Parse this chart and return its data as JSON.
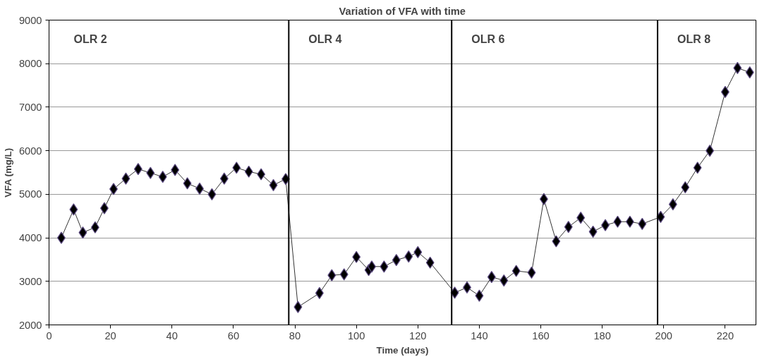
{
  "chart_data": {
    "type": "line",
    "title": "Variation of VFA with time",
    "xlabel": "Time (days)",
    "ylabel": "VFA (mg/L)",
    "x": [
      4,
      8,
      11,
      15,
      18,
      21,
      25,
      29,
      33,
      37,
      41,
      45,
      49,
      53,
      57,
      61,
      65,
      69,
      73,
      77,
      81,
      88,
      92,
      96,
      100,
      104,
      105,
      109,
      113,
      117,
      120,
      124,
      132,
      136,
      140,
      144,
      148,
      152,
      157,
      161,
      165,
      169,
      173,
      177,
      181,
      185,
      189,
      193,
      199,
      203,
      207,
      211,
      215,
      220,
      224,
      228
    ],
    "series": [
      {
        "color": "#000000",
        "values": [
          4000,
          4650,
          4120,
          4240,
          4680,
          5120,
          5360,
          5580,
          5490,
          5400,
          5560,
          5250,
          5130,
          5000,
          5360,
          5610,
          5520,
          5460,
          5210,
          5350,
          2410,
          2730,
          3140,
          3160,
          3560,
          3260,
          3340,
          3340,
          3490,
          3570,
          3670,
          3430,
          2740,
          2860,
          2670,
          3100,
          3020,
          3240,
          3200,
          4890,
          3920,
          4250,
          4460,
          4140,
          4290,
          4370,
          4370,
          4320,
          4480,
          4770,
          5160,
          5610,
          6000,
          7350,
          7900,
          7800
        ]
      }
    ],
    "marker": "diamond",
    "grid": "y",
    "xlim": [
      0,
      230
    ],
    "xticks": [
      0,
      20,
      40,
      60,
      80,
      100,
      120,
      140,
      160,
      180,
      200,
      220
    ],
    "ylim": [
      2000,
      9000
    ],
    "yticks": [
      2000,
      3000,
      4000,
      5000,
      6000,
      7000,
      8000,
      9000
    ],
    "ref_lines": [
      {
        "axis": "x",
        "value": 78,
        "label": "OLR 4",
        "color": "#000000"
      },
      {
        "axis": "x",
        "value": 131,
        "label": "OLR 6",
        "color": "#000000"
      },
      {
        "axis": "x",
        "value": 198,
        "label": "OLR 8",
        "color": "#000000"
      }
    ],
    "annotations": [
      "OLR 2"
    ]
  }
}
